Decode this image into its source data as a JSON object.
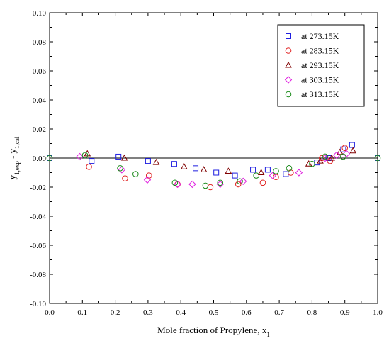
{
  "chart_data": {
    "type": "scatter",
    "xlabel": "Mole fraction of Propylene, x",
    "xlabel_sub": "1",
    "ylabel": "y",
    "ylabel_sub1": "1,exp",
    "ylabel_mid": " - y",
    "ylabel_sub2": "1,cal",
    "xlim": [
      0.0,
      1.0
    ],
    "ylim": [
      -0.1,
      0.1
    ],
    "xticks": [
      "0.0",
      "0.1",
      "0.2",
      "0.3",
      "0.4",
      "0.5",
      "0.6",
      "0.7",
      "0.8",
      "0.9",
      "1.0"
    ],
    "yticks": [
      "-0.10",
      "-0.08",
      "-0.06",
      "-0.04",
      "-0.02",
      "0.00",
      "0.02",
      "0.04",
      "0.06",
      "0.08",
      "0.10"
    ],
    "grid": false,
    "zero_line": true,
    "legend_position": "top-right",
    "series": [
      {
        "name": "at 273.15K",
        "marker": "square",
        "color": "#1f1fe0",
        "points": [
          [
            0.0,
            0.0
          ],
          [
            0.128,
            -0.002
          ],
          [
            0.21,
            0.001
          ],
          [
            0.3,
            -0.002
          ],
          [
            0.38,
            -0.004
          ],
          [
            0.445,
            -0.007
          ],
          [
            0.508,
            -0.01
          ],
          [
            0.565,
            -0.012
          ],
          [
            0.62,
            -0.008
          ],
          [
            0.665,
            -0.008
          ],
          [
            0.72,
            -0.011
          ],
          [
            0.815,
            -0.003
          ],
          [
            0.85,
            0.0
          ],
          [
            0.895,
            0.006
          ],
          [
            0.922,
            0.009
          ],
          [
            1.0,
            0.0
          ]
        ]
      },
      {
        "name": "at 283.15K",
        "marker": "circle",
        "color": "#e02020",
        "points": [
          [
            0.12,
            -0.006
          ],
          [
            0.23,
            -0.014
          ],
          [
            0.303,
            -0.012
          ],
          [
            0.39,
            -0.018
          ],
          [
            0.49,
            -0.02
          ],
          [
            0.575,
            -0.018
          ],
          [
            0.65,
            -0.017
          ],
          [
            0.69,
            -0.013
          ],
          [
            0.735,
            -0.01
          ],
          [
            0.83,
            0.0
          ],
          [
            0.855,
            -0.002
          ],
          [
            0.9,
            0.007
          ]
        ]
      },
      {
        "name": "at 293.15K",
        "marker": "triangle",
        "color": "#800000",
        "points": [
          [
            0.115,
            0.003
          ],
          [
            0.228,
            0.0
          ],
          [
            0.325,
            -0.003
          ],
          [
            0.41,
            -0.006
          ],
          [
            0.47,
            -0.008
          ],
          [
            0.545,
            -0.009
          ],
          [
            0.645,
            -0.01
          ],
          [
            0.79,
            -0.004
          ],
          [
            0.825,
            -0.002
          ],
          [
            0.86,
            0.0
          ],
          [
            0.885,
            0.004
          ],
          [
            0.925,
            0.005
          ]
        ]
      },
      {
        "name": "at 303.15K",
        "marker": "diamond",
        "color": "#e020e0",
        "points": [
          [
            0.092,
            0.001
          ],
          [
            0.22,
            -0.008
          ],
          [
            0.298,
            -0.015
          ],
          [
            0.39,
            -0.018
          ],
          [
            0.435,
            -0.018
          ],
          [
            0.52,
            -0.018
          ],
          [
            0.59,
            -0.016
          ],
          [
            0.68,
            -0.012
          ],
          [
            0.76,
            -0.01
          ],
          [
            0.84,
            0.0
          ],
          [
            0.875,
            0.002
          ],
          [
            0.905,
            0.003
          ]
        ]
      },
      {
        "name": "at 313.15K",
        "marker": "circle",
        "color": "#1a8a1a",
        "points": [
          [
            0.0,
            0.0
          ],
          [
            0.108,
            0.002
          ],
          [
            0.215,
            -0.007
          ],
          [
            0.262,
            -0.011
          ],
          [
            0.382,
            -0.017
          ],
          [
            0.475,
            -0.019
          ],
          [
            0.52,
            -0.017
          ],
          [
            0.58,
            -0.016
          ],
          [
            0.63,
            -0.012
          ],
          [
            0.69,
            -0.009
          ],
          [
            0.73,
            -0.007
          ],
          [
            0.8,
            -0.004
          ],
          [
            0.84,
            0.001
          ],
          [
            0.895,
            0.001
          ],
          [
            1.0,
            0.0
          ]
        ]
      }
    ]
  }
}
